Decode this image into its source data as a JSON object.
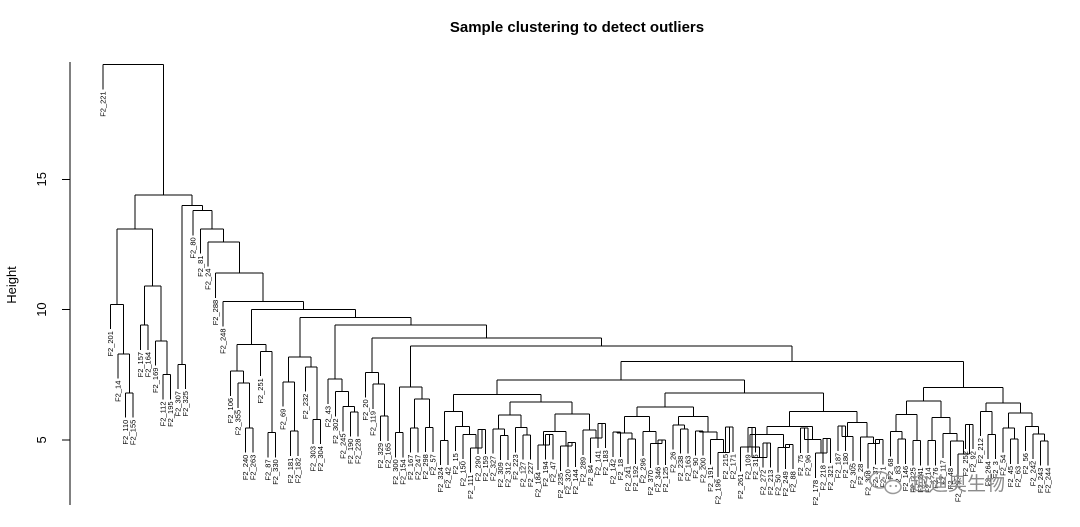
{
  "chart_data": {
    "type": "dendrogram",
    "title": "Sample clustering to detect outliers",
    "ylabel": "Height",
    "xlabel": "",
    "ylim": [
      2.5,
      19.5
    ],
    "yticks": [
      5,
      10,
      15
    ],
    "grid": false,
    "leaf_labels": [
      "F2_221",
      "F2_201",
      "F2_14",
      "F2_110",
      "F2_155",
      "F2_157",
      "F2_164",
      "F2_169",
      "F2_112",
      "F2_195",
      "F2_307",
      "F2_325",
      "F2_80",
      "F2_81",
      "F2_24",
      "F2_288",
      "F2_248",
      "F2_106",
      "F2_355",
      "F2_240",
      "F2_263",
      "F2_251",
      "F2_87",
      "F2_330",
      "F2_69",
      "F2_181",
      "F2_182",
      "F2_232",
      "F2_303",
      "F2_304",
      "F2_43",
      "F2_302",
      "F2_245",
      "F2_190",
      "F2_228",
      "F2_20",
      "F2_119",
      "F2_329",
      "F2_165",
      "F2_300",
      "F2_154",
      "F2_167",
      "F2_247",
      "F2_298",
      "F2_57",
      "F2_324",
      "F2_42",
      "F2_15",
      "F2_150",
      "F2_111",
      "F2_290",
      "F2_159",
      "F2_327",
      "F2_309",
      "F2_312",
      "F2_223",
      "F2_127",
      "F2_227",
      "F2_184",
      "F2_194",
      "F2_47",
      "F2_235",
      "F2_320",
      "F2_144",
      "F2_289",
      "F2_84",
      "F2_141",
      "F2_183",
      "F2_142",
      "F2_18",
      "F2_241",
      "F2_192",
      "F2_296",
      "F2_370",
      "F2_346",
      "F2_125",
      "F2_26",
      "F2_238",
      "F2_163",
      "F2_90",
      "F2_200",
      "F2_191",
      "F2_196",
      "F2_215",
      "F2_171",
      "F2_261",
      "F2_109",
      "F2_316",
      "F2_272",
      "F2_213",
      "F2_50",
      "F2_249",
      "F2_88",
      "F2_75",
      "F2_96",
      "F2_178",
      "F2_218",
      "F2_321",
      "F2_187",
      "F2_180",
      "F2_305",
      "F2_28",
      "F2_308",
      "F2_37",
      "F2_71",
      "F2_68",
      "F2_83",
      "F2_146",
      "F2_225",
      "F2_241",
      "F2_214",
      "F2_76",
      "F2_117",
      "F2_48",
      "F2_79",
      "F2_252",
      "F2_92",
      "F2_212",
      "F2_264",
      "F2_3",
      "F2_54",
      "F2_45",
      "F2_63",
      "F2_56",
      "F2_242",
      "F2_243",
      "F2_244"
    ],
    "annotations": [
      "趣迪奥生物"
    ]
  },
  "watermark": {
    "text": "趣迪奥生物",
    "icon": "wechat-logo"
  },
  "colors": {
    "lines": "#000000",
    "background": "#ffffff",
    "watermark": "#8a8a8a"
  }
}
